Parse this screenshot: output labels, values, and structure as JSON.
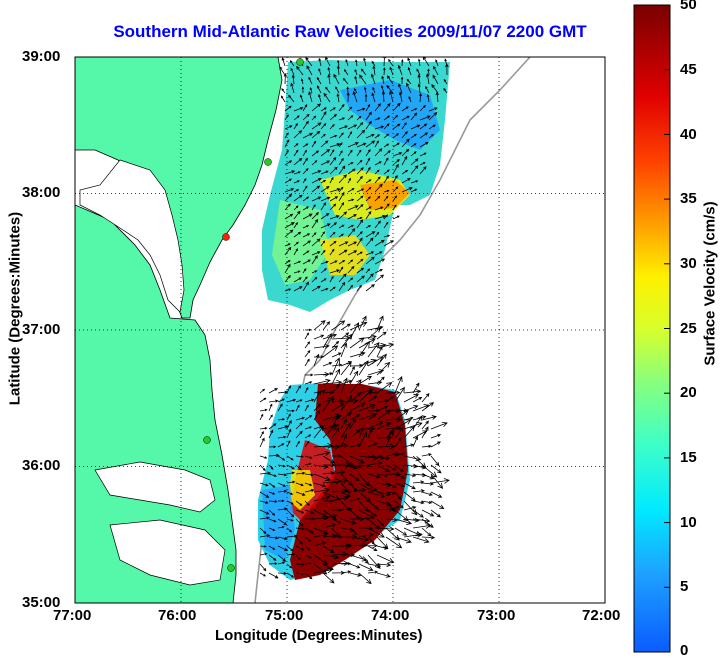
{
  "title": "Southern Mid-Atlantic Raw Velocities 2009/11/07 2200 GMT",
  "x_axis": {
    "label": "Longitude (Degrees:Minutes)",
    "ticks": [
      "77:00",
      "76:00",
      "75:00",
      "74:00",
      "73:00",
      "72:00"
    ]
  },
  "y_axis": {
    "label": "Latitude (Degrees:Minutes)",
    "ticks": [
      "39:00",
      "38:00",
      "37:00",
      "36:00",
      "35:00"
    ]
  },
  "colorbar": {
    "label": "Surface Velocity (cm/s)",
    "ticks": [
      "50",
      "45",
      "40",
      "35",
      "30",
      "25",
      "20",
      "15",
      "10",
      "5",
      "0"
    ],
    "min": 0,
    "max": 50
  },
  "colors": {
    "land": "#55f7a9",
    "title": "#0000ff",
    "grid": "#000000",
    "station_green": "#22cc22",
    "station_red": "#ff2200"
  }
}
